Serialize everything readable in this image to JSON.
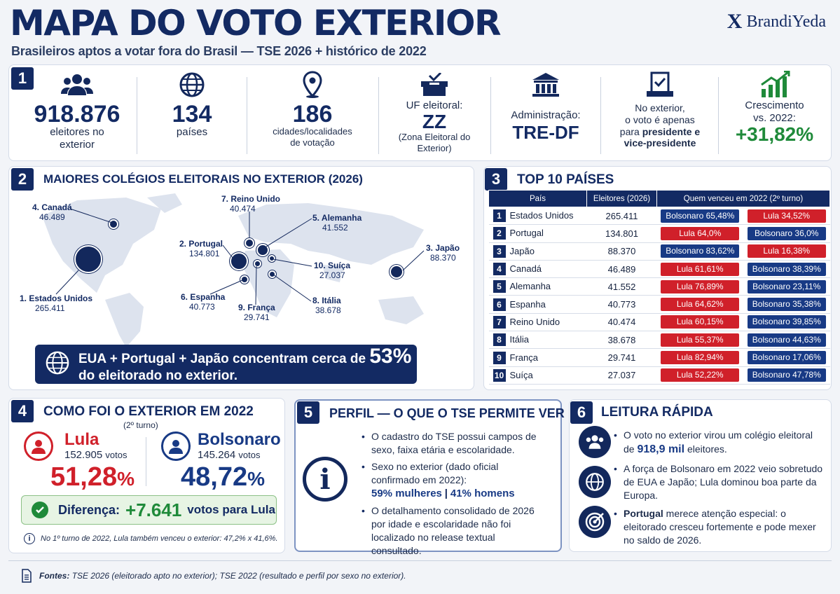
{
  "header": {
    "title": "MAPA DO VOTO EXTERIOR",
    "subtitle": "Brasileiros aptos a votar fora do Brasil — TSE 2026 + histórico de 2022",
    "brand_x": "X",
    "brand_name": "BrandiYeda"
  },
  "section1": {
    "number": "1",
    "stats": [
      {
        "icon": "people-icon",
        "big": "918.876",
        "small": "eleitores no exterior"
      },
      {
        "icon": "globe-icon",
        "big": "134",
        "small": "países"
      },
      {
        "icon": "location-pin-icon",
        "big": "186",
        "small": "cidades/localidades de votação"
      },
      {
        "icon": "ballot-box-icon",
        "top": "UF eleitoral:",
        "big": "ZZ",
        "small": "(Zona Eleitoral do Exterior)"
      },
      {
        "icon": "courthouse-icon",
        "top": "Administração:",
        "big": "TRE-DF"
      },
      {
        "icon": "ballot-check-icon",
        "text_a": "No exterior,",
        "text_b": "o voto é apenas",
        "text_c_pre": "para ",
        "text_c_bold": "presidente e",
        "text_d": "vice-presidente"
      },
      {
        "icon": "growth-chart-icon",
        "top": "Crescimento vs. 2022:",
        "big": "+31,82%"
      }
    ]
  },
  "section2": {
    "number": "2",
    "title": "MAIORES COLÉGIOS ELEITORAIS NO EXTERIOR (2026)",
    "labels": [
      {
        "name": "1. Estados Unidos",
        "value": "265.411"
      },
      {
        "name": "2. Portugal",
        "value": "134.801"
      },
      {
        "name": "3. Japão",
        "value": "88.370"
      },
      {
        "name": "4. Canadá",
        "value": "46.489"
      },
      {
        "name": "5. Alemanha",
        "value": "41.552"
      },
      {
        "name": "6. Espanha",
        "value": "40.773"
      },
      {
        "name": "7. Reino Unido",
        "value": "40.474"
      },
      {
        "name": "8. Itália",
        "value": "38.678"
      },
      {
        "name": "9. França",
        "value": "29.741"
      },
      {
        "name": "10. Suíça",
        "value": "27.037"
      }
    ],
    "banner_text_a": "EUA + Portugal + Japão concentram cerca de",
    "banner_pct": "53%",
    "banner_text_b": "do eleitorado no exterior."
  },
  "section3": {
    "number": "3",
    "title": "TOP 10 PAÍSES",
    "headers": [
      "País",
      "Eleitores (2026)",
      "Quem venceu em 2022 (2º turno)"
    ],
    "rows": [
      {
        "rank": "1",
        "country": "Estados Unidos",
        "voters": "265.411",
        "a": "Bolsonaro 65,48%",
        "a_color": "blue",
        "b": "Lula 34,52%",
        "b_color": "red"
      },
      {
        "rank": "2",
        "country": "Portugal",
        "voters": "134.801",
        "a": "Lula 64,0%",
        "a_color": "red",
        "b": "Bolsonaro 36,0%",
        "b_color": "blue"
      },
      {
        "rank": "3",
        "country": "Japão",
        "voters": "88.370",
        "a": "Bolsonaro 83,62%",
        "a_color": "blue",
        "b": "Lula 16,38%",
        "b_color": "red"
      },
      {
        "rank": "4",
        "country": "Canadá",
        "voters": "46.489",
        "a": "Lula 61,61%",
        "a_color": "red",
        "b": "Bolsonaro 38,39%",
        "b_color": "blue"
      },
      {
        "rank": "5",
        "country": "Alemanha",
        "voters": "41.552",
        "a": "Lula 76,89%",
        "a_color": "red",
        "b": "Bolsonaro 23,11%",
        "b_color": "blue"
      },
      {
        "rank": "6",
        "country": "Espanha",
        "voters": "40.773",
        "a": "Lula 64,62%",
        "a_color": "red",
        "b": "Bolsonaro 35,38%",
        "b_color": "blue"
      },
      {
        "rank": "7",
        "country": "Reino Unido",
        "voters": "40.474",
        "a": "Lula 60,15%",
        "a_color": "red",
        "b": "Bolsonaro 39,85%",
        "b_color": "blue"
      },
      {
        "rank": "8",
        "country": "Itália",
        "voters": "38.678",
        "a": "Lula 55,37%",
        "a_color": "red",
        "b": "Bolsonaro 44,63%",
        "b_color": "blue"
      },
      {
        "rank": "9",
        "country": "França",
        "voters": "29.741",
        "a": "Lula 82,94%",
        "a_color": "red",
        "b": "Bolsonaro 17,06%",
        "b_color": "blue"
      },
      {
        "rank": "10",
        "country": "Suíça",
        "voters": "27.037",
        "a": "Lula 52,22%",
        "a_color": "red",
        "b": "Bolsonaro 47,78%",
        "b_color": "blue"
      }
    ]
  },
  "section4": {
    "number": "4",
    "title": "COMO FOI O EXTERIOR EM 2022",
    "round": "(2º turno)",
    "lula_name": "Lula",
    "lula_votes": "152.905",
    "lula_pct": "51,28",
    "bolsonaro_name": "Bolsonaro",
    "bolsonaro_votes": "145.264",
    "bolsonaro_pct": "48,72",
    "votes_word": "votos",
    "pct_sign": "%",
    "diff_label": "Diferença:",
    "diff_value": "+7.641",
    "diff_suffix": "votos para Lula",
    "note": "No 1º turno de 2022, Lula também venceu o exterior: 47,2% x 41,6%."
  },
  "section5": {
    "number": "5",
    "title": "PERFIL — O QUE O TSE PERMITE VER",
    "b1": "O cadastro do TSE possui campos de sexo, faixa etária e escolaridade.",
    "b2": "Sexo no exterior (dado oficial confirmado em 2022):",
    "b2_women": "59% mulheres",
    "b2_sep": "|",
    "b2_men": "41% homens",
    "b3": "O detalhamento consolidado de 2026 por idade e escolaridade não foi localizado no release textual consultado."
  },
  "section6": {
    "number": "6",
    "title": "LEITURA RÁPIDA",
    "i1_a": "O voto no exterior virou um colégio eleitoral de",
    "i1_bold": "918,9 mil",
    "i1_b": "eleitores.",
    "i2": "A força de Bolsonaro em 2022 veio sobretudo de EUA e Japão; Lula dominou boa parte da Europa.",
    "i3_bold": "Portugal",
    "i3": "merece atenção especial: o eleitorado cresceu fortemente e pode mexer no saldo de 2026."
  },
  "footer": {
    "label": "Fontes:",
    "text": "TSE 2026 (eleitorado apto no exterior); TSE 2022 (resultado e perfil por sexo no exterior)."
  },
  "colors": {
    "navy": "#132a63",
    "red": "#d0202a",
    "blue": "#183a85",
    "green": "#1f8a3a"
  }
}
